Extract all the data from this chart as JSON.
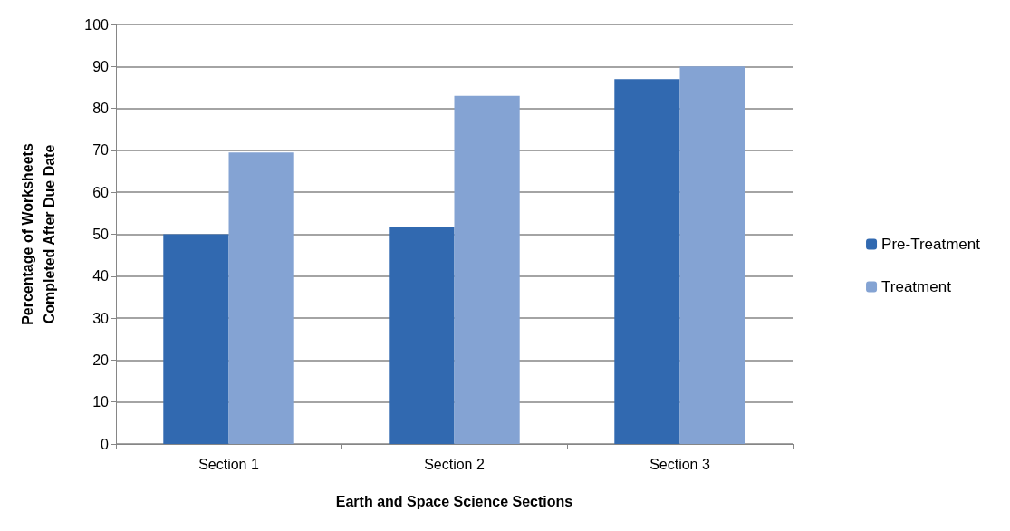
{
  "chart_data": {
    "type": "bar",
    "xlabel": "Earth and Space Science Sections",
    "ylabel": "Percentage of Worksheets\nCompleted After Due Date",
    "categories": [
      "Section 1",
      "Section 2",
      "Section 3"
    ],
    "series": [
      {
        "name": "Pre-Treatment",
        "color": "#3169b0",
        "values": [
          50,
          51.7,
          87
        ]
      },
      {
        "name": "Treatment",
        "color": "#84a3d3",
        "values": [
          69.5,
          83,
          90
        ]
      }
    ],
    "ylim": [
      0,
      100
    ],
    "yticks": [
      0,
      10,
      20,
      30,
      40,
      50,
      60,
      70,
      80,
      90,
      100
    ],
    "grid": "y",
    "legend": "right"
  }
}
